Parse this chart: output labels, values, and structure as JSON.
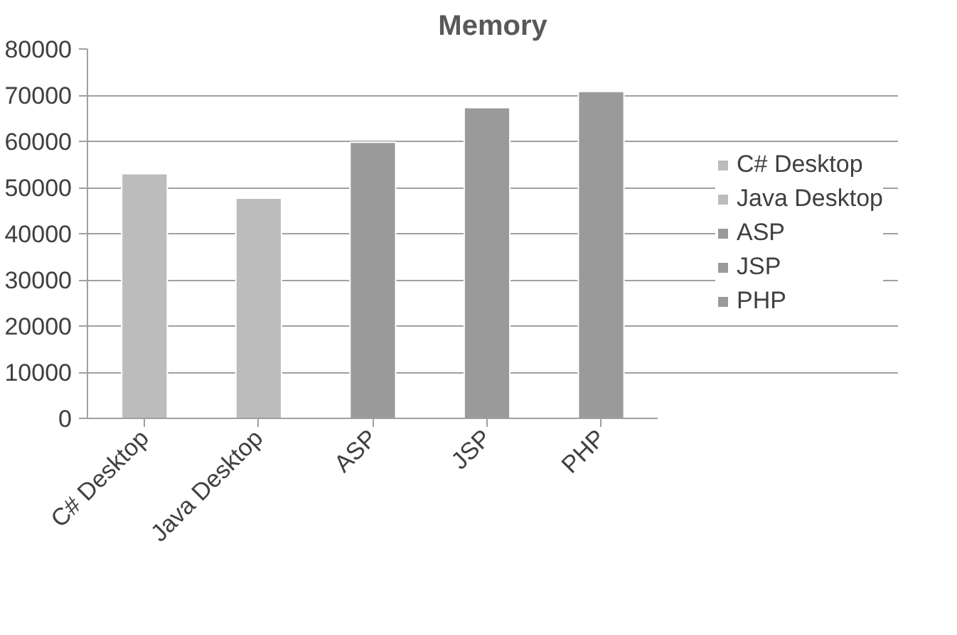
{
  "chart_data": {
    "type": "bar",
    "title": "Memory",
    "categories": [
      "C# Desktop",
      "Java Desktop",
      "ASP",
      "JSP",
      "PHP"
    ],
    "series": [
      {
        "name": "C# Desktop",
        "color": "#bcbcbc",
        "values": [
          53000,
          null,
          null,
          null,
          null
        ]
      },
      {
        "name": "Java Desktop",
        "color": "#bcbcbc",
        "values": [
          null,
          47700,
          null,
          null,
          null
        ]
      },
      {
        "name": "ASP",
        "color": "#9a9a9a",
        "values": [
          null,
          null,
          59800,
          null,
          null
        ]
      },
      {
        "name": "JSP",
        "color": "#9a9a9a",
        "values": [
          null,
          null,
          null,
          67300,
          null
        ]
      },
      {
        "name": "PHP",
        "color": "#9a9a9a",
        "values": [
          null,
          null,
          null,
          null,
          70800
        ]
      }
    ],
    "ylim": [
      0,
      80000
    ],
    "yticks": [
      0,
      10000,
      20000,
      30000,
      40000,
      50000,
      60000,
      70000,
      80000
    ],
    "grid": "y",
    "legend": "right"
  }
}
